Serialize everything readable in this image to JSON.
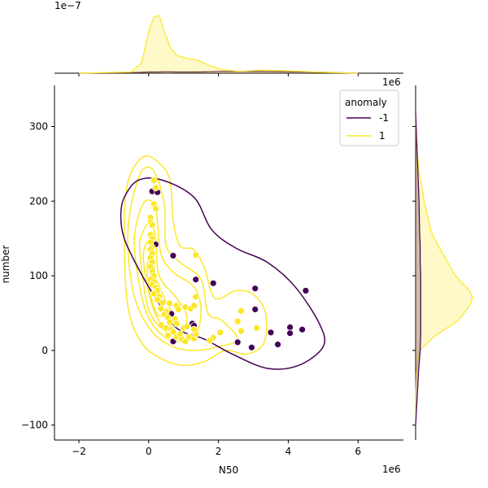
{
  "chart_data": {
    "type": "scatter",
    "kind": "jointplot-kde-scatter",
    "xlabel": "N50",
    "ylabel": "number",
    "x_offset_label": "1e6",
    "xlim": [
      -2.7,
      7.3
    ],
    "ylim": [
      -120,
      355
    ],
    "xticks": [
      -2,
      0,
      2,
      4,
      6
    ],
    "yticks": [
      -100,
      0,
      100,
      200,
      300
    ],
    "marg_x_offset_label": "1e−7",
    "marg_y_offset_label": "1e6",
    "grid": false,
    "legend": {
      "title": "anomaly",
      "placement": "top-right",
      "entries": [
        {
          "label": "-1",
          "color": "#440154"
        },
        {
          "label": "1",
          "color": "#fde725"
        }
      ]
    },
    "series": [
      {
        "name": "-1",
        "color": "#440154",
        "points": [
          [
            0.1,
            213
          ],
          [
            0.25,
            212
          ],
          [
            0.2,
            142
          ],
          [
            0.7,
            127
          ],
          [
            1.35,
            95
          ],
          [
            1.85,
            90
          ],
          [
            3.05,
            83
          ],
          [
            4.5,
            80
          ],
          [
            0.65,
            49
          ],
          [
            0.7,
            12
          ],
          [
            1.25,
            36
          ],
          [
            1.3,
            33
          ],
          [
            3.05,
            55
          ],
          [
            2.55,
            11
          ],
          [
            2.95,
            4
          ],
          [
            3.5,
            24
          ],
          [
            3.7,
            8
          ],
          [
            4.05,
            31
          ],
          [
            4.05,
            23
          ],
          [
            4.4,
            28
          ]
        ]
      },
      {
        "name": "1",
        "color": "#fde725",
        "points": [
          [
            0.15,
            228
          ],
          [
            0.2,
            218
          ],
          [
            0.15,
            196
          ],
          [
            0.2,
            190
          ],
          [
            0.05,
            178
          ],
          [
            0.05,
            172
          ],
          [
            0.1,
            168
          ],
          [
            0.05,
            155
          ],
          [
            0.1,
            150
          ],
          [
            0.05,
            145
          ],
          [
            0.1,
            138
          ],
          [
            0.05,
            135
          ],
          [
            0.1,
            130
          ],
          [
            0.05,
            124
          ],
          [
            0.1,
            118
          ],
          [
            0.05,
            112
          ],
          [
            0.1,
            106
          ],
          [
            0.15,
            100
          ],
          [
            0.05,
            95
          ],
          [
            0.15,
            92
          ],
          [
            0.1,
            88
          ],
          [
            0.2,
            84
          ],
          [
            0.25,
            80
          ],
          [
            0.15,
            76
          ],
          [
            0.3,
            72
          ],
          [
            0.25,
            68
          ],
          [
            0.4,
            64
          ],
          [
            0.6,
            63
          ],
          [
            0.8,
            60
          ],
          [
            0.35,
            56
          ],
          [
            0.5,
            52
          ],
          [
            0.45,
            48
          ],
          [
            0.55,
            44
          ],
          [
            0.75,
            42
          ],
          [
            0.6,
            38
          ],
          [
            0.8,
            36
          ],
          [
            0.35,
            34
          ],
          [
            0.5,
            30
          ],
          [
            0.65,
            28
          ],
          [
            0.7,
            25
          ],
          [
            0.55,
            20
          ],
          [
            0.8,
            18
          ],
          [
            0.9,
            22
          ],
          [
            0.95,
            15
          ],
          [
            1.05,
            12
          ],
          [
            1.15,
            18
          ],
          [
            1.3,
            16
          ],
          [
            1.35,
            22
          ],
          [
            1.3,
            28
          ],
          [
            1.0,
            30
          ],
          [
            0.85,
            55
          ],
          [
            1.05,
            58
          ],
          [
            1.2,
            56
          ],
          [
            1.3,
            60
          ],
          [
            1.35,
            72
          ],
          [
            1.35,
            128
          ],
          [
            2.05,
            24
          ],
          [
            1.85,
            17
          ],
          [
            1.75,
            13
          ],
          [
            2.65,
            53
          ],
          [
            2.55,
            39
          ],
          [
            2.65,
            26
          ],
          [
            3.1,
            30
          ],
          [
            1.1,
            32
          ]
        ]
      }
    ],
    "kde_levels": {
      "-1": [
        [
          [
            -0.8,
            180
          ],
          [
            -0.7,
            205
          ],
          [
            -0.3,
            228
          ],
          [
            0.4,
            228
          ],
          [
            1.3,
            205
          ],
          [
            1.8,
            162
          ],
          [
            2.5,
            137
          ],
          [
            3.4,
            118
          ],
          [
            4.2,
            85
          ],
          [
            4.9,
            35
          ],
          [
            5.0,
            5
          ],
          [
            4.3,
            -20
          ],
          [
            3.4,
            -24
          ],
          [
            2.4,
            -5
          ],
          [
            1.6,
            15
          ],
          [
            0.8,
            30
          ],
          [
            0.2,
            70
          ],
          [
            -0.3,
            110
          ],
          [
            -0.7,
            150
          ]
        ]
      ],
      "1": [
        [
          [
            -0.7,
            160
          ],
          [
            -0.6,
            225
          ],
          [
            -0.2,
            258
          ],
          [
            0.2,
            255
          ],
          [
            0.6,
            230
          ],
          [
            0.7,
            175
          ],
          [
            0.9,
            140
          ],
          [
            1.3,
            135
          ],
          [
            1.6,
            110
          ],
          [
            1.9,
            70
          ],
          [
            2.5,
            80
          ],
          [
            3.0,
            75
          ],
          [
            3.35,
            50
          ],
          [
            3.3,
            10
          ],
          [
            2.8,
            -5
          ],
          [
            2.2,
            0
          ],
          [
            1.6,
            -15
          ],
          [
            1.0,
            -20
          ],
          [
            0.4,
            -12
          ],
          [
            -0.2,
            10
          ],
          [
            -0.6,
            60
          ]
        ],
        [
          [
            -0.6,
            140
          ],
          [
            -0.5,
            195
          ],
          [
            -0.2,
            240
          ],
          [
            0.15,
            240
          ],
          [
            0.45,
            195
          ],
          [
            0.5,
            140
          ],
          [
            0.9,
            118
          ],
          [
            1.5,
            95
          ],
          [
            1.7,
            50
          ],
          [
            2.1,
            40
          ],
          [
            2.55,
            15
          ],
          [
            2.0,
            5
          ],
          [
            1.3,
            0
          ],
          [
            0.7,
            5
          ],
          [
            0.1,
            25
          ],
          [
            -0.4,
            70
          ]
        ],
        [
          [
            -0.4,
            130
          ],
          [
            -0.35,
            170
          ],
          [
            -0.1,
            200
          ],
          [
            0.2,
            190
          ],
          [
            0.35,
            130
          ],
          [
            0.7,
            105
          ],
          [
            1.3,
            85
          ],
          [
            1.5,
            55
          ],
          [
            1.35,
            20
          ],
          [
            0.9,
            12
          ],
          [
            0.4,
            20
          ],
          [
            -0.1,
            55
          ]
        ],
        [
          [
            -0.25,
            130
          ],
          [
            -0.2,
            155
          ],
          [
            0.05,
            172
          ],
          [
            0.2,
            150
          ],
          [
            0.3,
            100
          ],
          [
            0.8,
            70
          ],
          [
            1.1,
            45
          ],
          [
            0.9,
            25
          ],
          [
            0.5,
            25
          ],
          [
            0.0,
            55
          ]
        ],
        [
          [
            -0.15,
            120
          ],
          [
            -0.05,
            145
          ],
          [
            0.1,
            140
          ],
          [
            0.2,
            100
          ],
          [
            0.5,
            65
          ],
          [
            0.75,
            42
          ],
          [
            0.45,
            32
          ],
          [
            0.1,
            60
          ]
        ],
        [
          [
            -0.05,
            110
          ],
          [
            0.05,
            125
          ],
          [
            0.15,
            95
          ],
          [
            0.35,
            68
          ],
          [
            0.45,
            50
          ],
          [
            0.25,
            48
          ],
          [
            0.05,
            75
          ]
        ]
      ]
    },
    "kde_marginal_x": {
      "x": [
        -2.0,
        -0.5,
        -0.2,
        0.0,
        0.15,
        0.3,
        0.45,
        0.6,
        0.8,
        1.1,
        1.4,
        1.7,
        2.1,
        2.6,
        3.2,
        4.0,
        5.0,
        6.0
      ],
      "-1": [
        0.0,
        0.01,
        0.015,
        0.02,
        0.02,
        0.02,
        0.025,
        0.025,
        0.02,
        0.02,
        0.02,
        0.025,
        0.03,
        0.03,
        0.03,
        0.025,
        0.015,
        0.0
      ],
      "1": [
        0.0,
        0.02,
        0.18,
        0.7,
        0.95,
        0.97,
        0.7,
        0.45,
        0.3,
        0.25,
        0.22,
        0.14,
        0.06,
        0.03,
        0.05,
        0.04,
        0.015,
        0.0
      ]
    },
    "kde_marginal_y": {
      "y": [
        -100,
        -60,
        -30,
        0,
        20,
        40,
        60,
        70,
        80,
        100,
        120,
        140,
        160,
        200,
        240,
        280,
        320
      ],
      "-1": [
        0.0,
        0.03,
        0.05,
        0.08,
        0.09,
        0.09,
        0.09,
        0.09,
        0.09,
        0.09,
        0.08,
        0.08,
        0.07,
        0.06,
        0.04,
        0.02,
        0.0
      ],
      "1": [
        0.0,
        0.0,
        0.01,
        0.07,
        0.35,
        0.75,
        0.95,
        1.0,
        0.95,
        0.7,
        0.55,
        0.4,
        0.27,
        0.15,
        0.06,
        0.01,
        0.0
      ]
    }
  }
}
